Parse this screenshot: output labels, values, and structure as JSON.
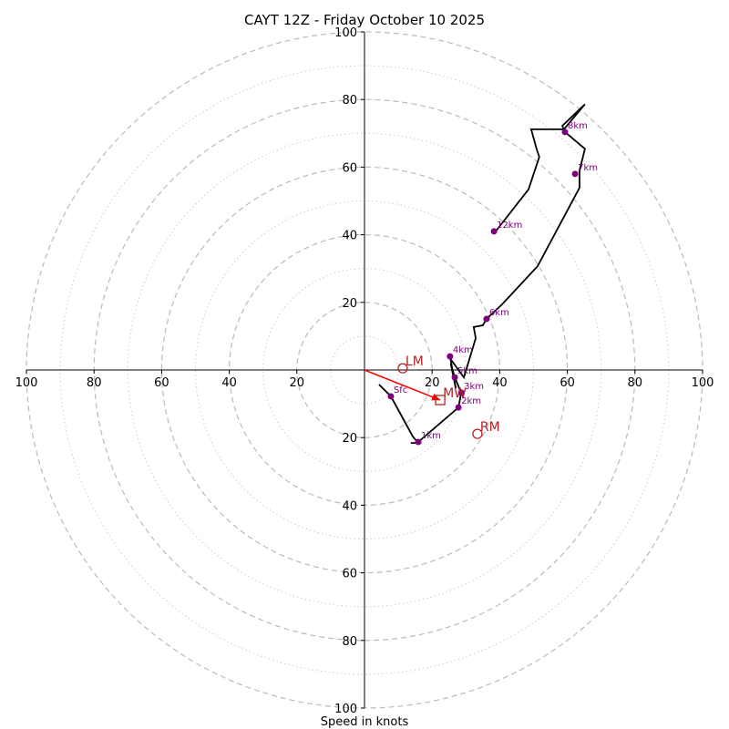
{
  "chart_data": {
    "type": "line",
    "subtype": "hodograph",
    "title": "CAYT 12Z - Friday October 10 2025",
    "xlabel": "Speed in knots",
    "ylabel": "",
    "xlim": [
      -100,
      100
    ],
    "ylim": [
      -100,
      100
    ],
    "major_rings": [
      20,
      40,
      60,
      80,
      100
    ],
    "minor_rings": [
      10,
      30,
      50,
      70,
      90
    ],
    "x_tick_labels": [
      "100",
      "80",
      "60",
      "40",
      "20",
      "20",
      "40",
      "60",
      "80",
      "100"
    ],
    "x_tick_values": [
      -100,
      -80,
      -60,
      -40,
      -20,
      20,
      40,
      60,
      80,
      100
    ],
    "y_tick_labels": [
      "100",
      "80",
      "60",
      "40",
      "20",
      "20",
      "40",
      "60",
      "80",
      "100"
    ],
    "y_tick_values": [
      100,
      80,
      60,
      40,
      20,
      -20,
      -40,
      -60,
      -80,
      -100
    ],
    "colors": {
      "hodo_line": "#000000",
      "markers": "#800080",
      "motion": "#b22222",
      "mean_wind_arrow": "#ff0000",
      "grid": "#bbbbbb"
    },
    "series": [
      {
        "name": "hodograph",
        "u": [
          4.3,
          7.8,
          14.3,
          15.9,
          13.7,
          15.1,
          15.9,
          27.8,
          28.6,
          26.7,
          25.5,
          27.0,
          25.3,
          24.9,
          29.4,
          32.9,
          32.3,
          35.0,
          36.1,
          40.7,
          51.2,
          63.6,
          63.6,
          65.2,
          59.3,
          58.5,
          65.2,
          59.0,
          49.3,
          50.9,
          51.7,
          48.5,
          38.8,
          38.3
        ],
        "v": [
          -4.3,
          -7.8,
          -19.7,
          -21.6,
          -21.6,
          -21.6,
          -21.3,
          -11.1,
          -6.7,
          -2.2,
          1.9,
          -5.4,
          4.0,
          4.0,
          -2.2,
          9.4,
          12.7,
          13.2,
          15.1,
          19.4,
          30.7,
          53.9,
          59.0,
          65.4,
          70.4,
          72.2,
          78.6,
          71.2,
          71.2,
          65.4,
          63.0,
          53.4,
          41.0,
          41.0
        ]
      }
    ],
    "height_markers": [
      {
        "label": "Sfc",
        "u": 7.8,
        "v": -7.8
      },
      {
        "label": "1km",
        "u": 15.9,
        "v": -21.3
      },
      {
        "label": "2km",
        "u": 27.8,
        "v": -11.1
      },
      {
        "label": "3km",
        "u": 28.6,
        "v": -6.7
      },
      {
        "label": "4km",
        "u": 25.3,
        "v": 4.0
      },
      {
        "label": "5km",
        "u": 26.7,
        "v": -2.2
      },
      {
        "label": "6km",
        "u": 36.1,
        "v": 15.1
      },
      {
        "label": "7km",
        "u": 62.3,
        "v": 58.0
      },
      {
        "label": "8km",
        "u": 59.3,
        "v": 70.4
      },
      {
        "label": "12km",
        "u": 38.3,
        "v": 41.0
      }
    ],
    "storm_motion": [
      {
        "label": "LM",
        "u": 11.3,
        "v": 0.5,
        "marker": "circle"
      },
      {
        "label": "RM",
        "u": 33.4,
        "v": -18.9,
        "marker": "circle"
      },
      {
        "label": "MW",
        "u": 22.4,
        "v": -8.9,
        "marker": "square"
      }
    ],
    "mean_wind_arrow": {
      "from_u": 0,
      "from_v": 0,
      "to_u": 22.4,
      "to_v": -8.9
    }
  }
}
